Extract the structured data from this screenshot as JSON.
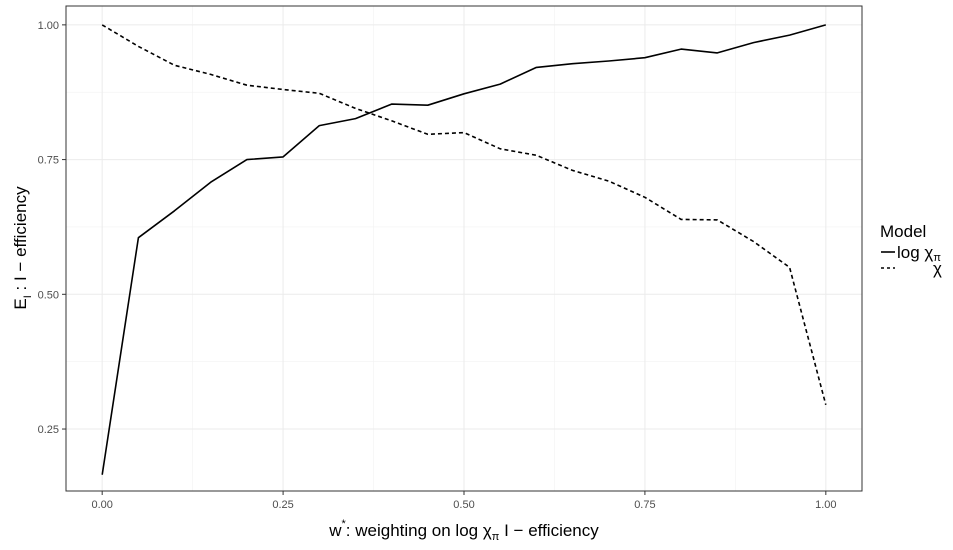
{
  "chart_data": {
    "type": "line",
    "xlabel": {
      "prefix": "w",
      "sup": "*",
      "mid": ":  weighting on log ",
      "chi": "χ",
      "sub": "π",
      "suffix": "  I − efficiency"
    },
    "ylabel": {
      "main": "E",
      "sub": "I",
      "suffix": " :   I − efficiency"
    },
    "xlim": [
      -0.05,
      1.05
    ],
    "ylim": [
      0.135,
      1.035
    ],
    "x_ticks": [
      "0.00",
      "0.25",
      "0.50",
      "0.75",
      "1.00"
    ],
    "x_tick_values": [
      0,
      0.25,
      0.5,
      0.75,
      1.0
    ],
    "y_ticks": [
      "0.25",
      "0.50",
      "0.75",
      "1.00"
    ],
    "y_tick_values": [
      0.25,
      0.5,
      0.75,
      1.0
    ],
    "grid": true,
    "legend": {
      "title": "Model",
      "position": "right",
      "entries": [
        {
          "text": "log ",
          "chi": "χ",
          "sub": "π",
          "dash": "solid"
        },
        {
          "text": "",
          "chi": "χ",
          "sub": "",
          "dash": "dashed"
        }
      ]
    },
    "series": [
      {
        "dash": "solid",
        "x": [
          0,
          0.05,
          0.1,
          0.15,
          0.2,
          0.25,
          0.3,
          0.35,
          0.4,
          0.45,
          0.5,
          0.55,
          0.6,
          0.65,
          0.7,
          0.75,
          0.8,
          0.85,
          0.9,
          0.95,
          1.0
        ],
        "y": [
          0.165,
          0.605,
          0.655,
          0.708,
          0.75,
          0.755,
          0.813,
          0.826,
          0.853,
          0.851,
          0.872,
          0.89,
          0.921,
          0.928,
          0.933,
          0.939,
          0.955,
          0.948,
          0.967,
          0.981,
          1.0
        ]
      },
      {
        "dash": "dashed",
        "x": [
          0,
          0.05,
          0.1,
          0.15,
          0.2,
          0.25,
          0.3,
          0.35,
          0.4,
          0.45,
          0.5,
          0.55,
          0.6,
          0.65,
          0.7,
          0.75,
          0.8,
          0.85,
          0.9,
          0.95,
          1.0
        ],
        "y": [
          1.0,
          0.96,
          0.925,
          0.908,
          0.888,
          0.88,
          0.873,
          0.845,
          0.822,
          0.797,
          0.8,
          0.77,
          0.758,
          0.73,
          0.71,
          0.68,
          0.639,
          0.638,
          0.598,
          0.55,
          0.295
        ]
      }
    ]
  }
}
